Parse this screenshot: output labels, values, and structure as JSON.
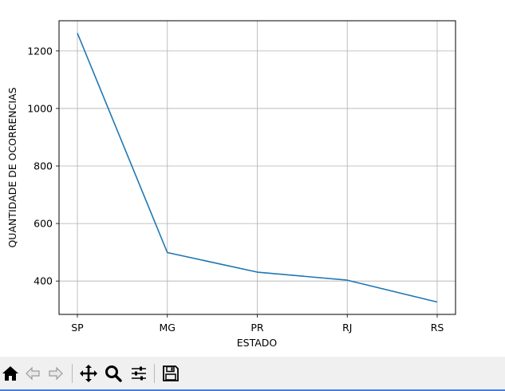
{
  "chart_data": {
    "type": "line",
    "categories": [
      "SP",
      "MG",
      "PR",
      "RJ",
      "RS"
    ],
    "values": [
      1262,
      499,
      431,
      403,
      327
    ],
    "xlabel": "ESTADO",
    "ylabel": "QUANTIDADE DE OCORRENCIAS",
    "ylim": [
      284,
      1305
    ],
    "yticks": [
      400,
      600,
      800,
      1000,
      1200
    ],
    "grid": true,
    "line_color": "#1f77b4"
  },
  "toolbar": {
    "buttons": [
      {
        "name": "home-button",
        "icon": "home-icon"
      },
      {
        "name": "back-button",
        "icon": "arrow-left-icon"
      },
      {
        "name": "forward-button",
        "icon": "arrow-right-icon"
      },
      {
        "name": "pan-button",
        "icon": "move-icon"
      },
      {
        "name": "zoom-button",
        "icon": "magnifier-icon"
      },
      {
        "name": "configure-subplots-button",
        "icon": "sliders-icon"
      },
      {
        "name": "save-button",
        "icon": "floppy-disk-icon"
      }
    ]
  }
}
